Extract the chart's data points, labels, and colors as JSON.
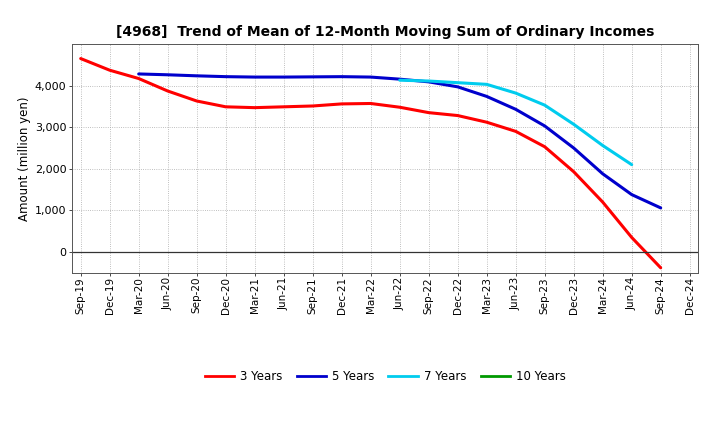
{
  "title": "[4968]  Trend of Mean of 12-Month Moving Sum of Ordinary Incomes",
  "ylabel": "Amount (million yen)",
  "x_labels": [
    "Sep-19",
    "Dec-19",
    "Mar-20",
    "Jun-20",
    "Sep-20",
    "Dec-20",
    "Mar-21",
    "Jun-21",
    "Sep-21",
    "Dec-21",
    "Mar-22",
    "Jun-22",
    "Sep-22",
    "Dec-22",
    "Mar-23",
    "Jun-23",
    "Sep-23",
    "Dec-23",
    "Mar-24",
    "Jun-24",
    "Sep-24",
    "Dec-24"
  ],
  "ylim": [
    -500,
    5000
  ],
  "yticks": [
    0,
    1000,
    2000,
    3000,
    4000
  ],
  "colors": {
    "3years": "#ff0000",
    "5years": "#0000cc",
    "7years": "#00ccee",
    "10years": "#009900"
  },
  "labels": {
    "3years": "3 Years",
    "5years": "5 Years",
    "7years": "7 Years",
    "10years": "10 Years"
  },
  "y3": [
    4650,
    4370,
    4170,
    3870,
    3630,
    3490,
    3470,
    3490,
    3510,
    3560,
    3570,
    3480,
    3350,
    3280,
    3120,
    2900,
    2530,
    1930,
    1200,
    350,
    -380,
    null
  ],
  "y5": [
    null,
    null,
    4280,
    4260,
    4235,
    4215,
    4205,
    4205,
    4210,
    4215,
    4205,
    4155,
    4090,
    3970,
    3740,
    3430,
    3030,
    2500,
    1880,
    1380,
    1060,
    null
  ],
  "y7": [
    null,
    null,
    null,
    null,
    null,
    null,
    null,
    null,
    null,
    null,
    null,
    4130,
    4110,
    4070,
    4030,
    3820,
    3530,
    3070,
    2560,
    2100,
    null,
    null
  ],
  "y10": [
    null,
    null,
    null,
    null,
    null,
    null,
    null,
    null,
    null,
    null,
    null,
    null,
    null,
    null,
    null,
    null,
    null,
    null,
    null,
    null,
    null,
    null
  ]
}
